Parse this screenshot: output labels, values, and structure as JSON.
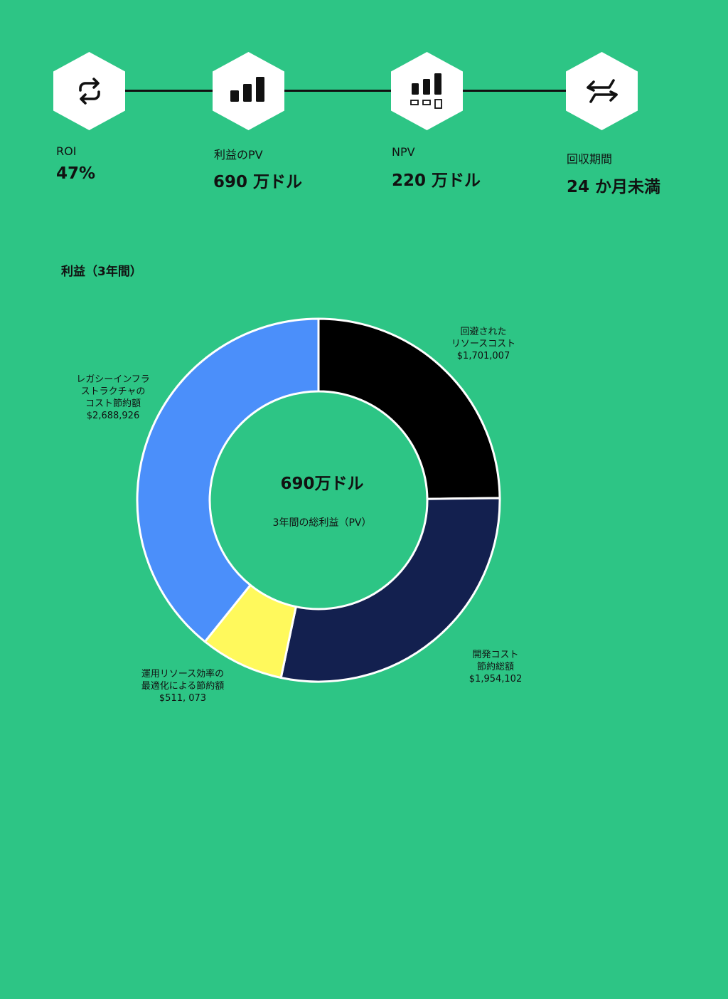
{
  "metrics": [
    {
      "icon": "refresh-icon",
      "label": "ROI",
      "value": "47%"
    },
    {
      "icon": "bar-chart-icon",
      "label": "利益のPV",
      "value": "690 万ドル"
    },
    {
      "icon": "bar-chart-boxes-icon",
      "label": "NPV",
      "value": "220 万ドル"
    },
    {
      "icon": "exchange-arrows-icon",
      "label": "回収期間",
      "value": "24 か月未満"
    }
  ],
  "section_title": "利益（3年間）",
  "chart_data": {
    "type": "pie",
    "title": "",
    "center_value": "690万ドル",
    "center_caption": "3年間の総利益（PV）",
    "slices": [
      {
        "label_lines": [
          "回避された",
          "リソースコスト"
        ],
        "value_text": "$1,701,007",
        "value": 1701007,
        "color": "#000000"
      },
      {
        "label_lines": [
          "開発コスト",
          "節約総額"
        ],
        "value_text": "$1,954,102",
        "value": 1954102,
        "color": "#13204f"
      },
      {
        "label_lines": [
          "運用リソース効率の",
          "最適化による節約額"
        ],
        "value_text": "$511, 073",
        "value": 511073,
        "color": "#fff95c"
      },
      {
        "label_lines": [
          "レガシーインフラ",
          "ストラクチャの",
          "コスト節約額"
        ],
        "value_text": "$2,688,926",
        "value": 2688926,
        "color": "#4b8ffa"
      }
    ]
  }
}
